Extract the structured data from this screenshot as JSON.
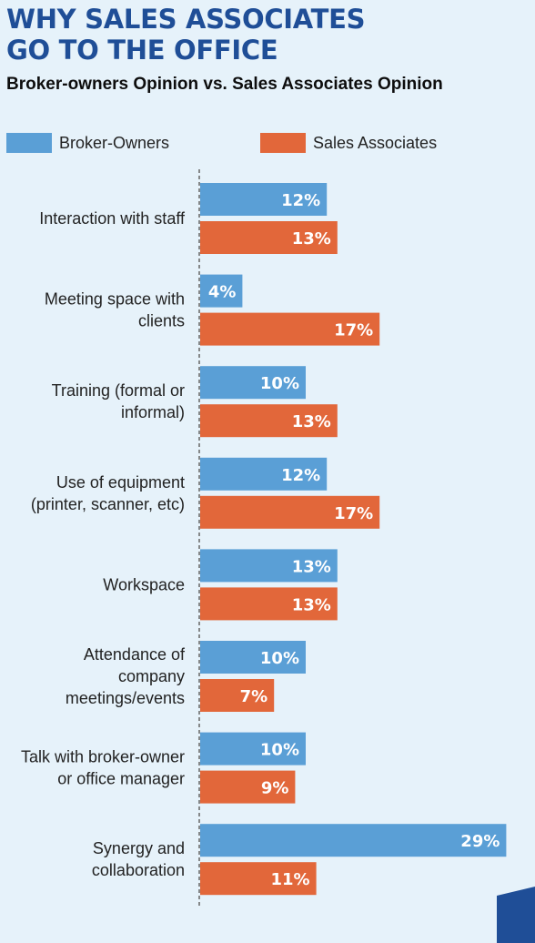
{
  "header": {
    "title": "WHY SALES ASSOCIATES GO TO THE OFFICE",
    "subtitle": "Broker-owners Opinion vs. Sales Associates Opinion"
  },
  "colors": {
    "background": "#e6f2fa",
    "title": "#1f4e97",
    "broker_owners": "#5a9fd6",
    "sales_associates": "#e2673a",
    "axis": "#6d6d6d",
    "corner": "#1f4e97"
  },
  "chart_data": {
    "type": "bar",
    "orientation": "horizontal",
    "categories": [
      [
        "Interaction with staff"
      ],
      [
        "Meeting space with",
        "clients"
      ],
      [
        "Training (formal or",
        "informal)"
      ],
      [
        "Use of equipment",
        "(printer, scanner, etc)"
      ],
      [
        "Workspace"
      ],
      [
        "Attendance of",
        "company",
        "meetings/events"
      ],
      [
        "Talk with broker-owner",
        "or office manager"
      ],
      [
        "Synergy and",
        "collaboration"
      ]
    ],
    "series": [
      {
        "name": "Broker-Owners",
        "values": [
          12,
          4,
          10,
          12,
          13,
          10,
          10,
          29
        ],
        "labels": [
          "12%",
          "4%",
          "10%",
          "12%",
          "13%",
          "10%",
          "10%",
          "29%"
        ]
      },
      {
        "name": "Sales Associates",
        "values": [
          13,
          17,
          13,
          17,
          13,
          7,
          9,
          11
        ],
        "labels": [
          "13%",
          "17%",
          "13%",
          "17%",
          "13%",
          "7%",
          "9%",
          "11%"
        ]
      }
    ],
    "unit": "%",
    "legend_position": "top",
    "grid": false
  }
}
